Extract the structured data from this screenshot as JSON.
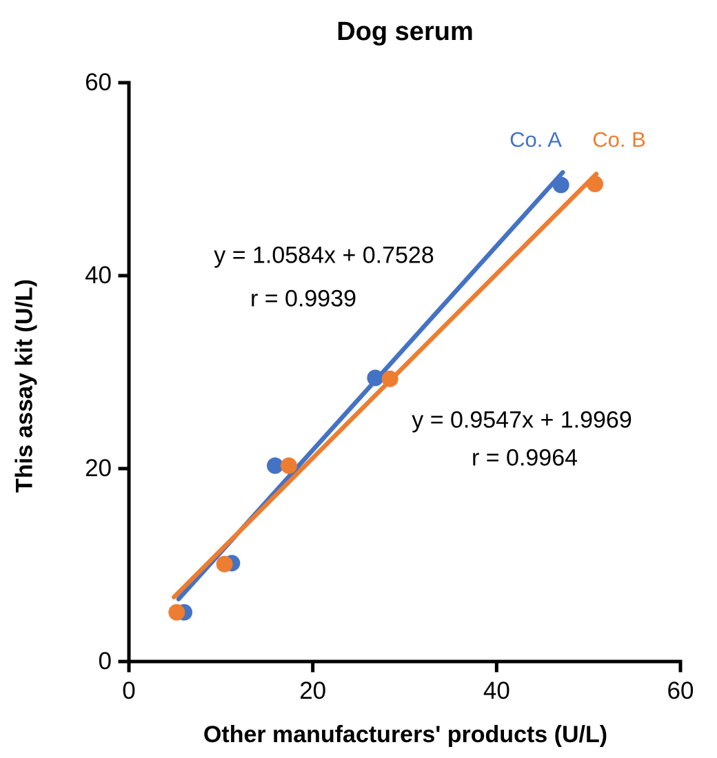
{
  "title": "Dog serum",
  "axes": {
    "x_label": "Other manufacturers' products (U/L)",
    "y_label": "This assay kit (U/L)"
  },
  "colors": {
    "series_a": "#4472C4",
    "series_b": "#ED7D31",
    "axis": "#000000"
  },
  "chart_data": {
    "type": "scatter",
    "title": "Dog serum",
    "xlabel": "Other manufacturers' products (U/L)",
    "ylabel": "This assay kit (U/L)",
    "xlim": [
      0,
      60
    ],
    "ylim": [
      0,
      60
    ],
    "xticks": [
      "0",
      "20",
      "40",
      "60"
    ],
    "yticks": [
      "0",
      "20",
      "40",
      "60"
    ],
    "grid": false,
    "legend_position": "top-right-inside",
    "series": [
      {
        "name": "Co. A",
        "color": "#4472C4",
        "marker": "circle",
        "points": [
          [
            6.0,
            5.1
          ],
          [
            11.2,
            10.2
          ],
          [
            15.9,
            20.3
          ],
          [
            26.8,
            29.4
          ],
          [
            47.0,
            49.4
          ]
        ],
        "trendline": {
          "slope": 1.0584,
          "intercept": 0.7528,
          "x_start": 5.4,
          "x_end": 47.2
        },
        "equation": "y = 1.0584x + 0.7528",
        "r_label": "r = 0.9939"
      },
      {
        "name": "Co. B",
        "color": "#ED7D31",
        "marker": "circle",
        "points": [
          [
            5.2,
            5.1
          ],
          [
            10.4,
            10.1
          ],
          [
            17.4,
            20.3
          ],
          [
            28.4,
            29.3
          ],
          [
            50.7,
            49.5
          ]
        ],
        "trendline": {
          "slope": 0.9547,
          "intercept": 1.9969,
          "x_start": 4.9,
          "x_end": 50.85
        },
        "equation": "y = 0.9547x + 1.9969",
        "r_label": "r = 0.9964"
      }
    ]
  }
}
